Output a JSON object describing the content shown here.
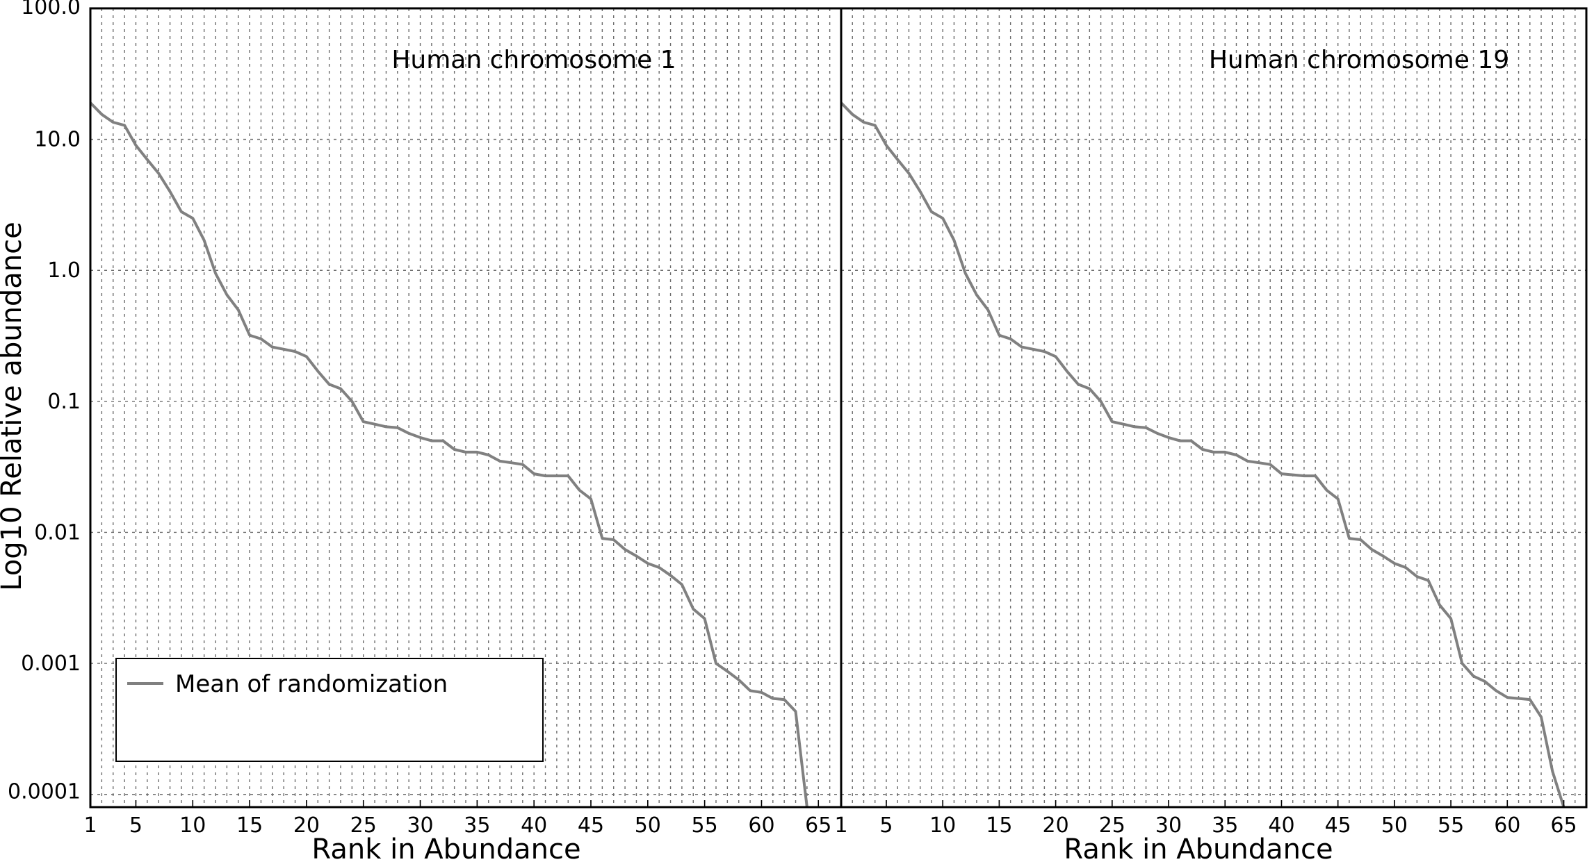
{
  "chart_data": {
    "type": "line",
    "ylabel": "Log10 Relative abundance",
    "xlabel": "Rank in Abundance",
    "yscale": "log",
    "ylim": [
      8e-05,
      100
    ],
    "y_ticks": [
      0.0001,
      0.001,
      0.01,
      0.1,
      1,
      10,
      100
    ],
    "y_tick_labels": [
      "0.0001",
      "0.001",
      "0.01",
      "0.1",
      "1.0",
      "10.0",
      "100.0"
    ],
    "x_ticks": [
      1,
      5,
      10,
      15,
      20,
      25,
      30,
      35,
      40,
      45,
      50,
      55,
      60,
      65
    ],
    "x_tick_labels": [
      "1",
      "5",
      "10",
      "15",
      "20",
      "25",
      "30",
      "35",
      "40",
      "45",
      "50",
      "55",
      "60",
      "65"
    ],
    "grid": true,
    "legend": {
      "placement": "lower-left",
      "entries": [
        "Mean of randomization"
      ]
    },
    "panels": [
      {
        "title": "Human chromosome 1",
        "xlim": [
          1,
          67
        ],
        "series": [
          {
            "name": "Mean of randomization",
            "color": "#808080",
            "x": [
              1,
              2,
              3,
              4,
              5,
              6,
              7,
              8,
              9,
              10,
              11,
              12,
              13,
              14,
              15,
              16,
              17,
              18,
              19,
              20,
              21,
              22,
              23,
              24,
              25,
              26,
              27,
              28,
              29,
              30,
              31,
              32,
              33,
              34,
              35,
              36,
              37,
              38,
              39,
              40,
              41,
              42,
              43,
              44,
              45,
              46,
              47,
              48,
              49,
              50,
              51,
              52,
              53,
              54,
              55,
              56,
              57,
              58,
              59,
              60,
              61,
              62,
              63,
              64
            ],
            "y": [
              19,
              15.5,
              13.5,
              12.8,
              9,
              7,
              5.5,
              4,
              2.8,
              2.5,
              1.7,
              0.95,
              0.65,
              0.5,
              0.32,
              0.3,
              0.26,
              0.25,
              0.24,
              0.22,
              0.17,
              0.135,
              0.125,
              0.1,
              0.07,
              0.067,
              0.064,
              0.063,
              0.057,
              0.053,
              0.05,
              0.05,
              0.043,
              0.041,
              0.041,
              0.039,
              0.035,
              0.034,
              0.033,
              0.028,
              0.027,
              0.027,
              0.027,
              0.021,
              0.018,
              0.009,
              0.0088,
              0.0074,
              0.0066,
              0.0058,
              0.0054,
              0.0047,
              0.004,
              0.0026,
              0.0022,
              0.001,
              0.00087,
              0.00075,
              0.00062,
              0.0006,
              0.00054,
              0.00053,
              0.00043,
              8e-05
            ]
          }
        ]
      },
      {
        "title": "Human chromosome 19",
        "xlim": [
          1,
          67
        ],
        "series": [
          {
            "name": "Mean of randomization",
            "color": "#808080",
            "x": [
              1,
              2,
              3,
              4,
              5,
              6,
              7,
              8,
              9,
              10,
              11,
              12,
              13,
              14,
              15,
              16,
              17,
              18,
              19,
              20,
              21,
              22,
              23,
              24,
              25,
              26,
              27,
              28,
              29,
              30,
              31,
              32,
              33,
              34,
              35,
              36,
              37,
              38,
              39,
              40,
              41,
              42,
              43,
              44,
              45,
              46,
              47,
              48,
              49,
              50,
              51,
              52,
              53,
              54,
              55,
              56,
              57,
              58,
              59,
              60,
              61,
              62,
              63,
              64,
              65
            ],
            "y": [
              19,
              15.5,
              13.5,
              12.8,
              9,
              7,
              5.5,
              4,
              2.8,
              2.5,
              1.7,
              0.95,
              0.65,
              0.5,
              0.32,
              0.3,
              0.26,
              0.25,
              0.24,
              0.22,
              0.17,
              0.135,
              0.125,
              0.1,
              0.07,
              0.067,
              0.064,
              0.063,
              0.057,
              0.053,
              0.05,
              0.05,
              0.043,
              0.041,
              0.041,
              0.039,
              0.035,
              0.034,
              0.033,
              0.028,
              0.0275,
              0.027,
              0.027,
              0.021,
              0.018,
              0.009,
              0.0088,
              0.0074,
              0.0066,
              0.0058,
              0.0054,
              0.0046,
              0.0043,
              0.0028,
              0.0022,
              0.001,
              0.0008,
              0.00073,
              0.00062,
              0.00055,
              0.00054,
              0.00053,
              0.00039,
              0.00015,
              8e-05
            ]
          }
        ]
      }
    ]
  }
}
